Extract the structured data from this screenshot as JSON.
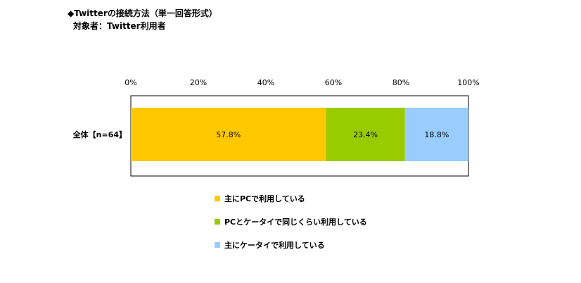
{
  "title": "◆Twitterの接続方法（単一回答形式）",
  "subtitle": "対象者：Twitter利用者",
  "chart_data": {
    "type": "bar",
    "orientation": "horizontal-stacked-100",
    "categories": [
      "全体【n=64】"
    ],
    "x_ticks": [
      "0%",
      "20%",
      "40%",
      "60%",
      "80%",
      "100%"
    ],
    "xlim": [
      0,
      100
    ],
    "series": [
      {
        "name": "主にPCで利用している",
        "values": [
          57.8
        ],
        "label": "57.8%",
        "color": "#FFC800"
      },
      {
        "name": "PCとケータイで同じくらい利用している",
        "values": [
          23.4
        ],
        "label": "23.4%",
        "color": "#99CC00"
      },
      {
        "name": "主にケータイで利用している",
        "values": [
          18.8
        ],
        "label": "18.8%",
        "color": "#99CCFF"
      }
    ],
    "grid": false,
    "legend_position": "bottom-center"
  }
}
